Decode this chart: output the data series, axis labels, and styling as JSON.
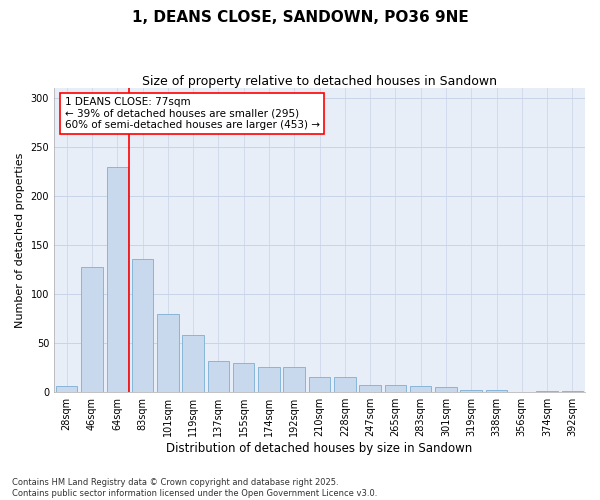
{
  "title": "1, DEANS CLOSE, SANDOWN, PO36 9NE",
  "subtitle": "Size of property relative to detached houses in Sandown",
  "xlabel": "Distribution of detached houses by size in Sandown",
  "ylabel": "Number of detached properties",
  "categories": [
    "28sqm",
    "46sqm",
    "64sqm",
    "83sqm",
    "101sqm",
    "119sqm",
    "137sqm",
    "155sqm",
    "174sqm",
    "192sqm",
    "210sqm",
    "228sqm",
    "247sqm",
    "265sqm",
    "283sqm",
    "301sqm",
    "319sqm",
    "338sqm",
    "356sqm",
    "374sqm",
    "392sqm"
  ],
  "values": [
    6,
    128,
    230,
    136,
    80,
    58,
    32,
    30,
    26,
    26,
    15,
    15,
    7,
    7,
    6,
    5,
    2,
    2,
    0,
    1,
    1
  ],
  "bar_color": "#c9d9ed",
  "bar_edge_color": "#7bafd4",
  "vline_color": "red",
  "vline_pos": 2.47,
  "annotation_text": "1 DEANS CLOSE: 77sqm\n← 39% of detached houses are smaller (295)\n60% of semi-detached houses are larger (453) →",
  "annotation_box_color": "white",
  "annotation_box_edge": "red",
  "ylim": [
    0,
    310
  ],
  "yticks": [
    0,
    50,
    100,
    150,
    200,
    250,
    300
  ],
  "grid_color": "#c8d4e8",
  "bg_color": "#e8eef8",
  "footnote": "Contains HM Land Registry data © Crown copyright and database right 2025.\nContains public sector information licensed under the Open Government Licence v3.0.",
  "title_fontsize": 11,
  "subtitle_fontsize": 9,
  "xlabel_fontsize": 8.5,
  "ylabel_fontsize": 8,
  "tick_fontsize": 7,
  "annot_fontsize": 7.5,
  "footnote_fontsize": 6
}
